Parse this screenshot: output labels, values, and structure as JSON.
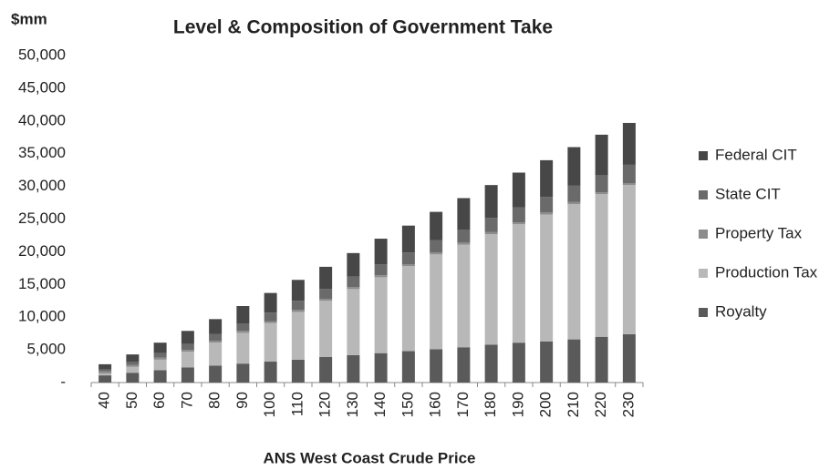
{
  "chart_data": {
    "type": "bar",
    "stacked": true,
    "title": "Level & Composition of Government Take",
    "y_label": "$mm",
    "x_label": "ANS West Coast Crude Price",
    "categories": [
      "40",
      "50",
      "60",
      "70",
      "80",
      "90",
      "100",
      "110",
      "120",
      "130",
      "140",
      "150",
      "160",
      "170",
      "180",
      "190",
      "200",
      "210",
      "220",
      "230"
    ],
    "series": [
      {
        "name": "Royalty",
        "color": "#5a5a5a",
        "values": [
          1100,
          1500,
          1900,
          2300,
          2600,
          2900,
          3200,
          3500,
          3900,
          4200,
          4500,
          4800,
          5100,
          5400,
          5800,
          6100,
          6300,
          6600,
          7000,
          7400
        ]
      },
      {
        "name": "Production Tax",
        "color": "#b8b8b8",
        "values": [
          300,
          900,
          1600,
          2400,
          3500,
          4700,
          5900,
          7300,
          8600,
          10100,
          11600,
          13000,
          14500,
          15700,
          16900,
          18100,
          19400,
          20700,
          21800,
          22800
        ]
      },
      {
        "name": "Property Tax",
        "color": "#8c8c8c",
        "values": [
          300,
          300,
          300,
          300,
          300,
          300,
          300,
          300,
          300,
          300,
          300,
          300,
          300,
          300,
          300,
          300,
          300,
          300,
          300,
          300
        ]
      },
      {
        "name": "State CIT",
        "color": "#6a6a6a",
        "values": [
          300,
          500,
          700,
          900,
          1000,
          1100,
          1300,
          1400,
          1500,
          1600,
          1700,
          1800,
          1900,
          2000,
          2200,
          2300,
          2400,
          2500,
          2600,
          2800
        ]
      },
      {
        "name": "Federal CIT",
        "color": "#474747",
        "values": [
          800,
          1100,
          1600,
          2000,
          2300,
          2700,
          3000,
          3200,
          3400,
          3600,
          3900,
          4100,
          4300,
          4800,
          5000,
          5300,
          5600,
          5900,
          6200,
          6400
        ]
      }
    ],
    "ylim": [
      0,
      50000
    ],
    "yticks": [
      {
        "value": 0,
        "label": "-"
      },
      {
        "value": 5000,
        "label": "5,000"
      },
      {
        "value": 10000,
        "label": "10,000"
      },
      {
        "value": 15000,
        "label": "15,000"
      },
      {
        "value": 20000,
        "label": "20,000"
      },
      {
        "value": 25000,
        "label": "25,000"
      },
      {
        "value": 30000,
        "label": "30,000"
      },
      {
        "value": 35000,
        "label": "35,000"
      },
      {
        "value": 40000,
        "label": "40,000"
      },
      {
        "value": 45000,
        "label": "45,000"
      },
      {
        "value": 50000,
        "label": "50,000"
      }
    ],
    "legend": "right",
    "grid": false
  }
}
